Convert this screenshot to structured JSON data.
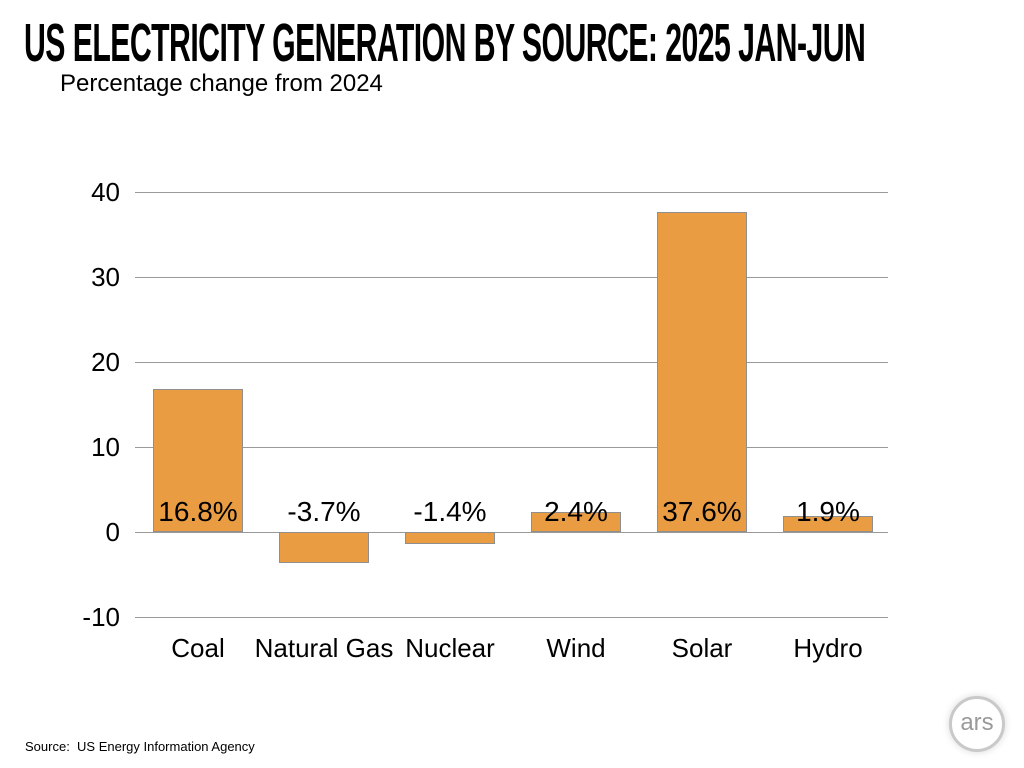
{
  "header": {
    "title": "US ELECTRICITY GENERATION BY SOURCE: 2025 JAN-JUN",
    "subtitle": "Percentage change from 2024"
  },
  "footer": {
    "source": "Source:  US Energy Information Agency",
    "logo_text": "ars"
  },
  "chart_data": {
    "type": "bar",
    "title": "US ELECTRICITY GENERATION BY SOURCE: 2025 JAN-JUN",
    "subtitle": "Percentage change from 2024",
    "categories": [
      "Coal",
      "Natural Gas",
      "Nuclear",
      "Wind",
      "Solar",
      "Hydro"
    ],
    "values": [
      16.8,
      -3.7,
      -1.4,
      2.4,
      37.6,
      1.9
    ],
    "data_labels": [
      "16.8%",
      "-3.7%",
      "-1.4%",
      "2.4%",
      "37.6%",
      "1.9%"
    ],
    "xlabel": "",
    "ylabel": "",
    "ylim": [
      -10,
      40
    ],
    "yticks": [
      40,
      30,
      20,
      10,
      0,
      -10
    ],
    "ytick_labels": [
      "40",
      "30",
      "20",
      "10",
      "0",
      "-10"
    ],
    "grid": true,
    "legend": "none",
    "bar_color": "#E99C42",
    "bar_border_color": "#8F8F8F",
    "gridline_color": "#999999",
    "source": "US Energy Information Agency"
  }
}
